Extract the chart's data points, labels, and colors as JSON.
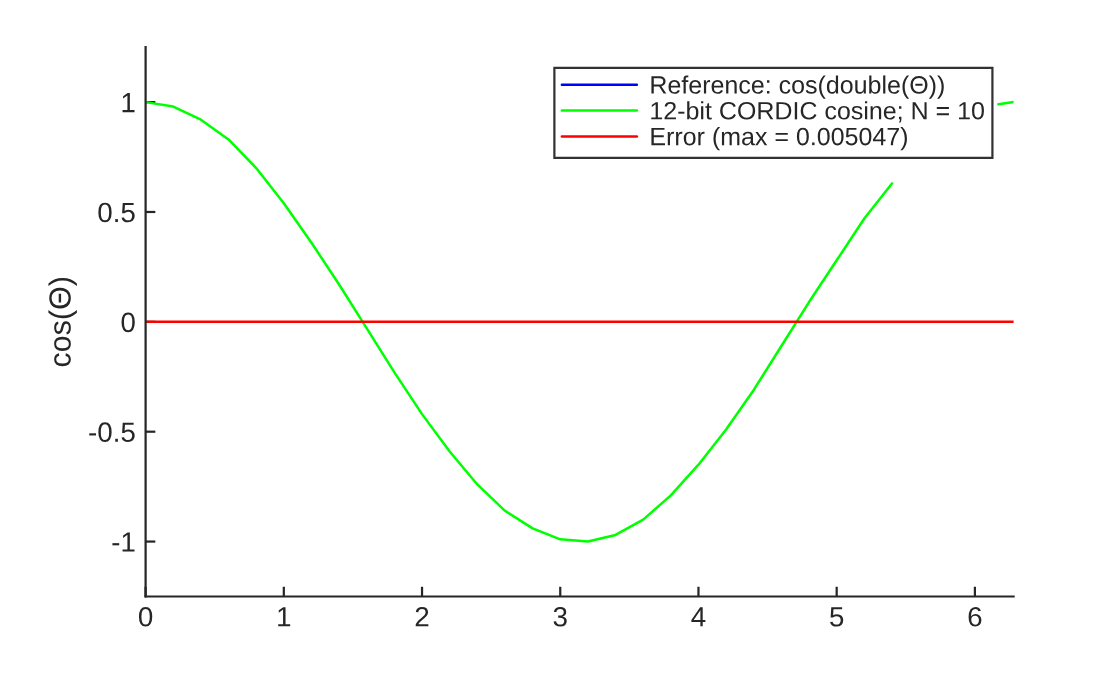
{
  "chart_data": {
    "type": "line",
    "ylabel": "cos(Θ)",
    "x": [
      0,
      0.2,
      0.4,
      0.6,
      0.8,
      1.0,
      1.2,
      1.4,
      1.6,
      1.8,
      2.0,
      2.2,
      2.4,
      2.6,
      2.8,
      3.0,
      3.2,
      3.4,
      3.6,
      3.8,
      4.0,
      4.2,
      4.4,
      4.6,
      4.8,
      5.0,
      5.2,
      5.4,
      5.6,
      5.8,
      6.0,
      6.17,
      6.28
    ],
    "series": [
      {
        "name": "Reference: cos(double(Θ))",
        "color": "#0000ff",
        "values": [
          null,
          null,
          null,
          null,
          null,
          null,
          null,
          null,
          null,
          null,
          null,
          null,
          null,
          null,
          null,
          null,
          null,
          null,
          null,
          null,
          null,
          null,
          null,
          null,
          null,
          null,
          null,
          null,
          null,
          null,
          null,
          null,
          null
        ]
      },
      {
        "name": "12-bit CORDIC cosine; N = 10",
        "color": "#00ff00",
        "values": [
          1,
          0.98,
          0.92,
          0.83,
          0.7,
          0.54,
          0.36,
          0.17,
          -0.03,
          -0.23,
          -0.42,
          -0.59,
          -0.74,
          -0.86,
          -0.94,
          -0.99,
          -1.0,
          -0.97,
          -0.9,
          -0.79,
          -0.65,
          -0.49,
          -0.31,
          -0.11,
          0.09,
          0.28,
          0.47,
          0.63,
          null,
          null,
          null,
          0.99,
          1.0
        ]
      },
      {
        "name": "Error (max = 0.005047)",
        "color": "#ff0000",
        "values": [
          0,
          0,
          0,
          0,
          0,
          0,
          0,
          0,
          0,
          0,
          0,
          0,
          0,
          0,
          0,
          0,
          0,
          0,
          0,
          0,
          0,
          0,
          0,
          0,
          0,
          0,
          0,
          0,
          0,
          0,
          0,
          0,
          0
        ]
      }
    ],
    "xlim": [
      0,
      6.28
    ],
    "xticks": [
      0,
      1,
      2,
      3,
      4,
      5,
      6
    ],
    "ylim": [
      -1.25,
      1.25
    ],
    "yticks": [
      -1,
      -0.5,
      0,
      0.5,
      1
    ],
    "legend": "top right"
  }
}
